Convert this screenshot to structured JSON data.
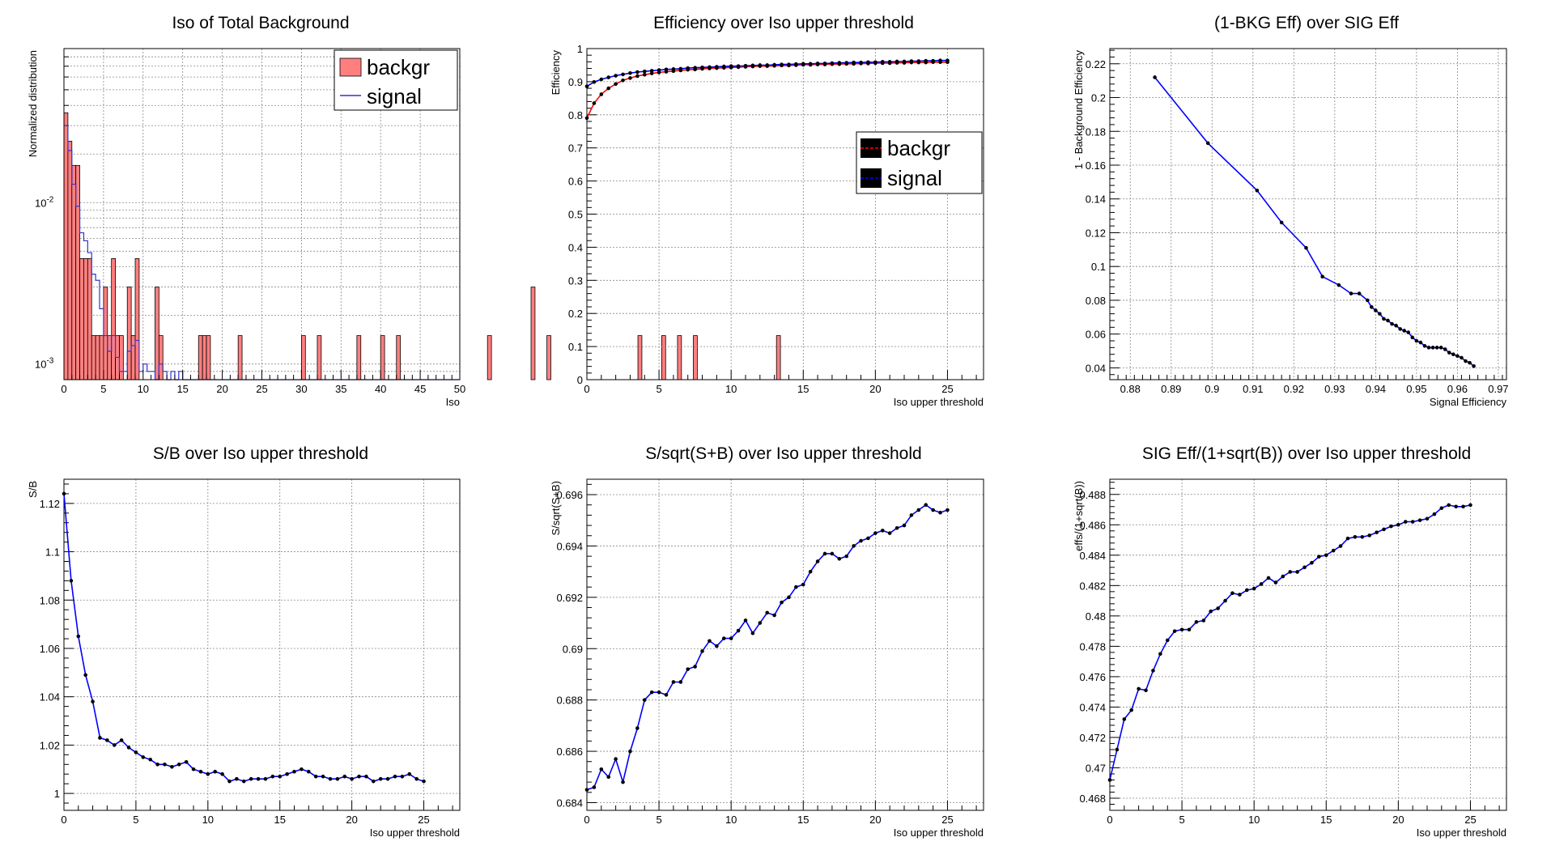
{
  "chart_data": [
    {
      "type": "histogram",
      "title": "Iso of Total Background",
      "xlabel": "Iso",
      "ylabel": "Normalized distribution",
      "xlim": [
        0,
        50
      ],
      "ylim": [
        0.0008,
        0.09
      ],
      "yscale": "log",
      "y_tick_labels": [
        "10^-3",
        "10^-2"
      ],
      "grid": true,
      "legend_position": "top-right",
      "bin_width": 0.5,
      "series": [
        {
          "name": "backgr",
          "color": "#ff7f7f",
          "values": [
            0.036,
            0.024,
            0.017,
            0.017,
            0.0045,
            0.0045,
            0.0045,
            0.0015,
            0.0015,
            0.0015,
            0.003,
            0.0015,
            0.0045,
            0.0015,
            0.0015,
            0.0,
            0.003,
            0.0015,
            0.0045,
            0.0,
            0.0,
            0.0,
            0.0,
            0.003,
            0.0015,
            0,
            0,
            0,
            0,
            0,
            0,
            0,
            0,
            0,
            0.0015,
            0.0015,
            0.0015,
            0,
            0,
            0,
            0,
            0,
            0,
            0,
            0.0015,
            0,
            0,
            0,
            0,
            0,
            0,
            0,
            0,
            0,
            0,
            0,
            0,
            0,
            0,
            0,
            0.0015,
            0,
            0,
            0,
            0.0015,
            0,
            0,
            0,
            0,
            0,
            0,
            0,
            0,
            0,
            0.0015,
            0,
            0,
            0,
            0,
            0,
            0.0015,
            0,
            0,
            0,
            0.0015,
            0,
            0,
            0,
            0,
            0,
            0,
            0,
            0,
            0,
            0,
            0,
            0,
            0,
            0,
            0,
            0,
            0,
            0,
            0,
            0,
            0,
            0,
            0.0015,
            0,
            0,
            0,
            0,
            0,
            0,
            0,
            0,
            0,
            0,
            0.003,
            0,
            0,
            0,
            0.0015,
            0,
            0,
            0,
            0,
            0,
            0,
            0,
            0,
            0,
            0,
            0,
            0,
            0,
            0,
            0,
            0,
            0,
            0,
            0,
            0,
            0,
            0,
            0.0015,
            0,
            0,
            0,
            0,
            0,
            0.0015,
            0,
            0,
            0,
            0.0015,
            0,
            0,
            0,
            0.0015,
            0,
            0,
            0,
            0,
            0,
            0,
            0,
            0,
            0,
            0,
            0,
            0,
            0,
            0,
            0,
            0,
            0,
            0,
            0,
            0,
            0.0015,
            0,
            0,
            0,
            0,
            0,
            0,
            0,
            0,
            0,
            0,
            0,
            0,
            0,
            0,
            0,
            0
          ]
        },
        {
          "name": "signal",
          "color": "#3333cc",
          "values": [
            0.03,
            0.021,
            0.013,
            0.0095,
            0.0065,
            0.0058,
            0.0049,
            0.0036,
            0.0033,
            0.0022,
            0.0015,
            0.0012,
            0.0015,
            0.0011,
            0.0009,
            0.0009,
            0.0012,
            0.0013,
            0.0014,
            0.0009,
            0.001,
            0.0009,
            0.0009,
            0.0008,
            0.001,
            0.0009,
            0.0008,
            0.0009,
            0.0008,
            0.0009,
            0,
            0,
            0,
            0,
            0,
            0,
            0,
            0,
            0,
            0,
            0,
            0,
            0,
            0,
            0,
            0,
            0,
            0,
            0,
            0,
            0,
            0,
            0,
            0,
            0,
            0,
            0,
            0,
            0,
            0,
            0,
            0,
            0,
            0,
            0,
            0,
            0,
            0,
            0,
            0,
            0,
            0,
            0,
            0,
            0,
            0,
            0,
            0,
            0,
            0,
            0,
            0,
            0,
            0,
            0,
            0,
            0,
            0,
            0,
            0,
            0,
            0,
            0,
            0,
            0,
            0,
            0,
            0,
            0,
            0
          ]
        }
      ]
    },
    {
      "type": "line",
      "title": "Efficiency over Iso upper threshold",
      "xlabel": "Iso upper threshold",
      "ylabel": "Efficiency",
      "xlim": [
        0,
        27.5
      ],
      "ylim": [
        0,
        1
      ],
      "grid": true,
      "legend_position": "right",
      "series": [
        {
          "name": "backgr",
          "color": "#ff0000",
          "x": [
            0,
            0.5,
            1,
            1.5,
            2,
            2.5,
            3,
            3.5,
            4,
            4.5,
            5,
            5.5,
            6,
            6.5,
            7,
            7.5,
            8,
            8.5,
            9,
            9.5,
            10,
            10.5,
            11,
            11.5,
            12,
            12.5,
            13,
            13.5,
            14,
            14.5,
            15,
            15.5,
            16,
            16.5,
            17,
            17.5,
            18,
            18.5,
            19,
            19.5,
            20,
            20.5,
            21,
            21.5,
            22,
            22.5,
            23,
            23.5,
            24,
            24.5,
            25
          ],
          "y": [
            0.79,
            0.835,
            0.862,
            0.88,
            0.893,
            0.904,
            0.911,
            0.917,
            0.921,
            0.925,
            0.928,
            0.93,
            0.932,
            0.934,
            0.936,
            0.937,
            0.939,
            0.94,
            0.941,
            0.942,
            0.943,
            0.944,
            0.945,
            0.946,
            0.947,
            0.947,
            0.948,
            0.949,
            0.949,
            0.95,
            0.951,
            0.951,
            0.952,
            0.952,
            0.953,
            0.953,
            0.954,
            0.954,
            0.955,
            0.955,
            0.956,
            0.956,
            0.956,
            0.957,
            0.957,
            0.958,
            0.958,
            0.958,
            0.959,
            0.959,
            0.959
          ]
        },
        {
          "name": "signal",
          "color": "#0000ff",
          "x": [
            0,
            0.5,
            1,
            1.5,
            2,
            2.5,
            3,
            3.5,
            4,
            4.5,
            5,
            5.5,
            6,
            6.5,
            7,
            7.5,
            8,
            8.5,
            9,
            9.5,
            10,
            10.5,
            11,
            11.5,
            12,
            12.5,
            13,
            13.5,
            14,
            14.5,
            15,
            15.5,
            16,
            16.5,
            17,
            17.5,
            18,
            18.5,
            19,
            19.5,
            20,
            20.5,
            21,
            21.5,
            22,
            22.5,
            23,
            23.5,
            24,
            24.5,
            25
          ],
          "y": [
            0.886,
            0.899,
            0.907,
            0.913,
            0.918,
            0.922,
            0.926,
            0.929,
            0.931,
            0.933,
            0.935,
            0.937,
            0.938,
            0.939,
            0.941,
            0.942,
            0.943,
            0.944,
            0.945,
            0.946,
            0.947,
            0.947,
            0.948,
            0.949,
            0.95,
            0.95,
            0.951,
            0.952,
            0.952,
            0.953,
            0.954,
            0.954,
            0.955,
            0.955,
            0.956,
            0.957,
            0.957,
            0.958,
            0.958,
            0.959,
            0.959,
            0.96,
            0.96,
            0.961,
            0.961,
            0.962,
            0.962,
            0.963,
            0.963,
            0.964,
            0.964
          ]
        }
      ],
      "x_ticks": [
        0,
        5,
        10,
        15,
        20,
        25
      ],
      "y_ticks": [
        0,
        0.1,
        0.2,
        0.3,
        0.4,
        0.5,
        0.6,
        0.7,
        0.8,
        0.9,
        1
      ]
    },
    {
      "type": "line",
      "title": "(1-BKG Eff) over SIG Eff",
      "xlabel": "Signal Efficiency",
      "ylabel": "1 - Background Efficiency",
      "xlim": [
        0.875,
        0.972
      ],
      "ylim": [
        0.033,
        0.229
      ],
      "grid": true,
      "series": [
        {
          "name": "",
          "color": "#0000ff",
          "x": [
            0.886,
            0.899,
            0.911,
            0.917,
            0.923,
            0.927,
            0.931,
            0.934,
            0.936,
            0.938,
            0.939,
            0.94,
            0.941,
            0.942,
            0.943,
            0.944,
            0.945,
            0.946,
            0.947,
            0.948,
            0.949,
            0.95,
            0.951,
            0.952,
            0.953,
            0.954,
            0.955,
            0.956,
            0.957,
            0.958,
            0.959,
            0.96,
            0.961,
            0.962,
            0.963,
            0.964
          ],
          "y": [
            0.212,
            0.173,
            0.145,
            0.126,
            0.111,
            0.094,
            0.089,
            0.084,
            0.084,
            0.08,
            0.076,
            0.074,
            0.072,
            0.069,
            0.068,
            0.066,
            0.065,
            0.063,
            0.062,
            0.061,
            0.058,
            0.056,
            0.055,
            0.053,
            0.052,
            0.052,
            0.052,
            0.052,
            0.051,
            0.049,
            0.048,
            0.047,
            0.046,
            0.044,
            0.043,
            0.041
          ]
        }
      ],
      "x_ticks": [
        0.88,
        0.89,
        0.9,
        0.91,
        0.92,
        0.93,
        0.94,
        0.95,
        0.96,
        0.97
      ],
      "y_ticks": [
        0.04,
        0.06,
        0.08,
        0.1,
        0.12,
        0.14,
        0.16,
        0.18,
        0.2,
        0.22
      ]
    },
    {
      "type": "line",
      "title": "S/B over Iso upper threshold",
      "xlabel": "Iso upper threshold",
      "ylabel": "S/B",
      "xlim": [
        0,
        27.5
      ],
      "ylim": [
        0.993,
        1.13
      ],
      "grid": true,
      "series": [
        {
          "name": "",
          "color": "#0000ff",
          "x": [
            0,
            0.5,
            1,
            1.5,
            2,
            2.5,
            3,
            3.5,
            4,
            4.5,
            5,
            5.5,
            6,
            6.5,
            7,
            7.5,
            8,
            8.5,
            9,
            9.5,
            10,
            10.5,
            11,
            11.5,
            12,
            12.5,
            13,
            13.5,
            14,
            14.5,
            15,
            15.5,
            16,
            16.5,
            17,
            17.5,
            18,
            18.5,
            19,
            19.5,
            20,
            20.5,
            21,
            21.5,
            22,
            22.5,
            23,
            23.5,
            24,
            24.5,
            25
          ],
          "y": [
            1.124,
            1.088,
            1.065,
            1.049,
            1.038,
            1.023,
            1.022,
            1.02,
            1.022,
            1.019,
            1.017,
            1.015,
            1.014,
            1.012,
            1.012,
            1.011,
            1.012,
            1.013,
            1.01,
            1.009,
            1.008,
            1.009,
            1.008,
            1.005,
            1.006,
            1.005,
            1.006,
            1.006,
            1.006,
            1.007,
            1.007,
            1.008,
            1.009,
            1.01,
            1.009,
            1.007,
            1.007,
            1.006,
            1.006,
            1.007,
            1.006,
            1.007,
            1.007,
            1.005,
            1.006,
            1.006,
            1.007,
            1.007,
            1.008,
            1.006,
            1.005
          ]
        }
      ],
      "x_ticks": [
        0,
        5,
        10,
        15,
        20,
        25
      ],
      "y_ticks": [
        1,
        1.02,
        1.04,
        1.06,
        1.08,
        1.1,
        1.12
      ]
    },
    {
      "type": "line",
      "title": "S/sqrt(S+B) over Iso upper threshold",
      "xlabel": "Iso upper threshold",
      "ylabel": "S/sqrt(S+B)",
      "xlim": [
        0,
        27.5
      ],
      "ylim": [
        0.6837,
        0.6966
      ],
      "grid": true,
      "series": [
        {
          "name": "",
          "color": "#0000ff",
          "x": [
            0,
            0.5,
            1,
            1.5,
            2,
            2.5,
            3,
            3.5,
            4,
            4.5,
            5,
            5.5,
            6,
            6.5,
            7,
            7.5,
            8,
            8.5,
            9,
            9.5,
            10,
            10.5,
            11,
            11.5,
            12,
            12.5,
            13,
            13.5,
            14,
            14.5,
            15,
            15.5,
            16,
            16.5,
            17,
            17.5,
            18,
            18.5,
            19,
            19.5,
            20,
            20.5,
            21,
            21.5,
            22,
            22.5,
            23,
            23.5,
            24,
            24.5,
            25
          ],
          "y": [
            0.6845,
            0.6846,
            0.6853,
            0.685,
            0.6857,
            0.6848,
            0.686,
            0.6869,
            0.688,
            0.6883,
            0.6883,
            0.6882,
            0.6887,
            0.6887,
            0.6892,
            0.6893,
            0.6899,
            0.6903,
            0.6901,
            0.6904,
            0.6904,
            0.6907,
            0.6911,
            0.6906,
            0.691,
            0.6914,
            0.6913,
            0.6918,
            0.692,
            0.6924,
            0.6925,
            0.693,
            0.6934,
            0.6937,
            0.6937,
            0.6935,
            0.6936,
            0.694,
            0.6942,
            0.6943,
            0.6945,
            0.6946,
            0.6945,
            0.6947,
            0.6948,
            0.6952,
            0.6954,
            0.6956,
            0.6954,
            0.6953,
            0.6954
          ]
        }
      ],
      "x_ticks": [
        0,
        5,
        10,
        15,
        20,
        25
      ],
      "y_ticks": [
        0.684,
        0.686,
        0.688,
        0.69,
        0.692,
        0.694,
        0.696
      ]
    },
    {
      "type": "line",
      "title": "SIG Eff/(1+sqrt(B)) over Iso upper threshold",
      "xlabel": "Iso upper threshold",
      "ylabel": "effs/(1+sqrt(B))",
      "xlim": [
        0,
        27.5
      ],
      "ylim": [
        0.4672,
        0.489
      ],
      "grid": true,
      "series": [
        {
          "name": "",
          "color": "#0000ff",
          "x": [
            0,
            0.5,
            1,
            1.5,
            2,
            2.5,
            3,
            3.5,
            4,
            4.5,
            5,
            5.5,
            6,
            6.5,
            7,
            7.5,
            8,
            8.5,
            9,
            9.5,
            10,
            10.5,
            11,
            11.5,
            12,
            12.5,
            13,
            13.5,
            14,
            14.5,
            15,
            15.5,
            16,
            16.5,
            17,
            17.5,
            18,
            18.5,
            19,
            19.5,
            20,
            20.5,
            21,
            21.5,
            22,
            22.5,
            23,
            23.5,
            24,
            24.5,
            25
          ],
          "y": [
            0.4692,
            0.4712,
            0.4732,
            0.4738,
            0.4752,
            0.4751,
            0.4764,
            0.4775,
            0.4784,
            0.479,
            0.4791,
            0.4791,
            0.4796,
            0.4797,
            0.4803,
            0.4805,
            0.481,
            0.4815,
            0.4814,
            0.4817,
            0.4818,
            0.4821,
            0.4825,
            0.4822,
            0.4826,
            0.4829,
            0.4829,
            0.4832,
            0.4835,
            0.4839,
            0.484,
            0.4843,
            0.4846,
            0.4851,
            0.4852,
            0.4852,
            0.4853,
            0.4855,
            0.4857,
            0.4859,
            0.486,
            0.4862,
            0.4862,
            0.4863,
            0.4864,
            0.4867,
            0.4871,
            0.4873,
            0.4872,
            0.4872,
            0.4873
          ]
        }
      ],
      "x_ticks": [
        0,
        5,
        10,
        15,
        20,
        25
      ],
      "y_ticks": [
        0.468,
        0.47,
        0.472,
        0.474,
        0.476,
        0.478,
        0.48,
        0.482,
        0.484,
        0.486,
        0.488
      ]
    }
  ]
}
